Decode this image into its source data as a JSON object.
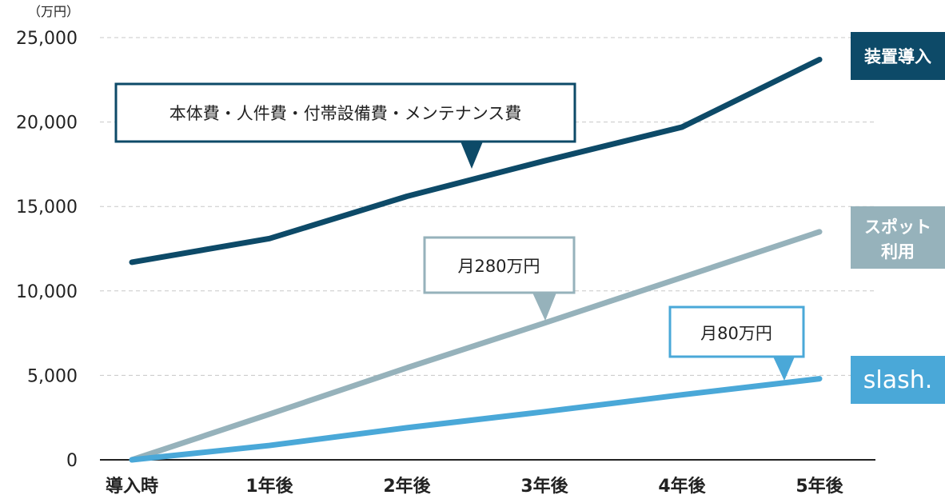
{
  "chart_data": {
    "type": "line",
    "y_unit": "（万円）",
    "categories": [
      "導入時",
      "1年後",
      "2年後",
      "3年後",
      "4年後",
      "5年後"
    ],
    "ylim": [
      0,
      25000
    ],
    "yticks": [
      0,
      5000,
      10000,
      15000,
      20000,
      25000
    ],
    "ytick_labels": [
      "0",
      "5,000",
      "10,000",
      "15,000",
      "20,000",
      "25,000"
    ],
    "grid": true,
    "series": [
      {
        "name": "装置導入",
        "color": "#0d4a68",
        "values": [
          11700,
          13100,
          15600,
          17700,
          19700,
          23700
        ]
      },
      {
        "name": "スポット利用",
        "name_lines": [
          "スポット",
          "利用"
        ],
        "color": "#96b2bb",
        "values": [
          0,
          2700,
          5450,
          8100,
          10800,
          13500
        ]
      },
      {
        "name": "slash.",
        "color": "#4aa8d8",
        "values": [
          0,
          850,
          1900,
          2850,
          3850,
          4800
        ]
      }
    ],
    "annotations": [
      {
        "text": "本体費・人件費・付帯設備費・メンテナンス費",
        "series": "装置導入",
        "color": "#0d4a68"
      },
      {
        "text": "月280万円",
        "series": "スポット利用",
        "color": "#96b2bb"
      },
      {
        "text": "月80万円",
        "series": "slash.",
        "color": "#4aa8d8"
      }
    ]
  }
}
